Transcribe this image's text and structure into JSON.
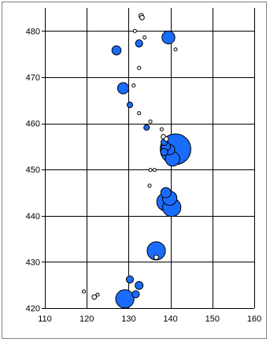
{
  "chart_data": {
    "type": "bubble",
    "title": "",
    "xlabel": "",
    "ylabel": "",
    "xlim": [
      110,
      160
    ],
    "ylim": [
      420,
      485
    ],
    "x_ticks": [
      "110",
      "120",
      "130",
      "140",
      "150",
      "160"
    ],
    "y_ticks": [
      "420",
      "430",
      "440",
      "450",
      "460",
      "470",
      "480"
    ],
    "grid": true,
    "legend": "none",
    "colors": {
      "bubble_fill": "#1a6cff",
      "bubble_stroke": "#000000",
      "grid": "#000000",
      "frame": "#808080"
    },
    "points": [
      {
        "x": 133.0,
        "y": 483.3,
        "size": 1
      },
      {
        "x": 133.2,
        "y": 482.9,
        "size": 1
      },
      {
        "x": 131.5,
        "y": 480.0,
        "size": 0.5
      },
      {
        "x": 139.5,
        "y": 478.6,
        "size": 8
      },
      {
        "x": 133.8,
        "y": 478.6,
        "size": 0.5
      },
      {
        "x": 132.5,
        "y": 477.3,
        "size": 2.5
      },
      {
        "x": 127.1,
        "y": 475.8,
        "size": 4
      },
      {
        "x": 141.2,
        "y": 476.0,
        "size": 0.5
      },
      {
        "x": 132.5,
        "y": 472.0,
        "size": 0.5
      },
      {
        "x": 131.2,
        "y": 468.2,
        "size": 0.5
      },
      {
        "x": 128.7,
        "y": 467.6,
        "size": 6
      },
      {
        "x": 130.3,
        "y": 464.0,
        "size": 1.5
      },
      {
        "x": 132.5,
        "y": 462.2,
        "size": 0.5
      },
      {
        "x": 135.2,
        "y": 460.4,
        "size": 0.5
      },
      {
        "x": 134.3,
        "y": 459.1,
        "size": 1.5
      },
      {
        "x": 137.9,
        "y": 458.7,
        "size": 0.5
      },
      {
        "x": 138.3,
        "y": 457.1,
        "size": 1
      },
      {
        "x": 139.0,
        "y": 456.6,
        "size": 1
      },
      {
        "x": 138.5,
        "y": 455.9,
        "size": 2
      },
      {
        "x": 138.9,
        "y": 455.0,
        "size": 4
      },
      {
        "x": 139.8,
        "y": 454.3,
        "size": 5
      },
      {
        "x": 138.5,
        "y": 453.8,
        "size": 2.5
      },
      {
        "x": 141.2,
        "y": 454.4,
        "size": 45
      },
      {
        "x": 140.5,
        "y": 452.3,
        "size": 10
      },
      {
        "x": 135.2,
        "y": 449.9,
        "size": 0.5
      },
      {
        "x": 136.2,
        "y": 449.9,
        "size": 0.5
      },
      {
        "x": 135.0,
        "y": 446.5,
        "size": 0.5
      },
      {
        "x": 138.9,
        "y": 445.0,
        "size": 5
      },
      {
        "x": 139.8,
        "y": 443.8,
        "size": 10
      },
      {
        "x": 138.9,
        "y": 443.0,
        "size": 16
      },
      {
        "x": 140.3,
        "y": 441.8,
        "size": 16
      },
      {
        "x": 136.6,
        "y": 432.4,
        "size": 16
      },
      {
        "x": 136.6,
        "y": 431.0,
        "size": 1
      },
      {
        "x": 130.3,
        "y": 426.2,
        "size": 2.5
      },
      {
        "x": 132.5,
        "y": 424.9,
        "size": 3
      },
      {
        "x": 131.7,
        "y": 423.0,
        "size": 2.5
      },
      {
        "x": 119.3,
        "y": 423.6,
        "size": 0.5
      },
      {
        "x": 122.6,
        "y": 422.9,
        "size": 0.5
      },
      {
        "x": 121.8,
        "y": 422.4,
        "size": 1
      },
      {
        "x": 129.1,
        "y": 422.0,
        "size": 16
      }
    ]
  }
}
